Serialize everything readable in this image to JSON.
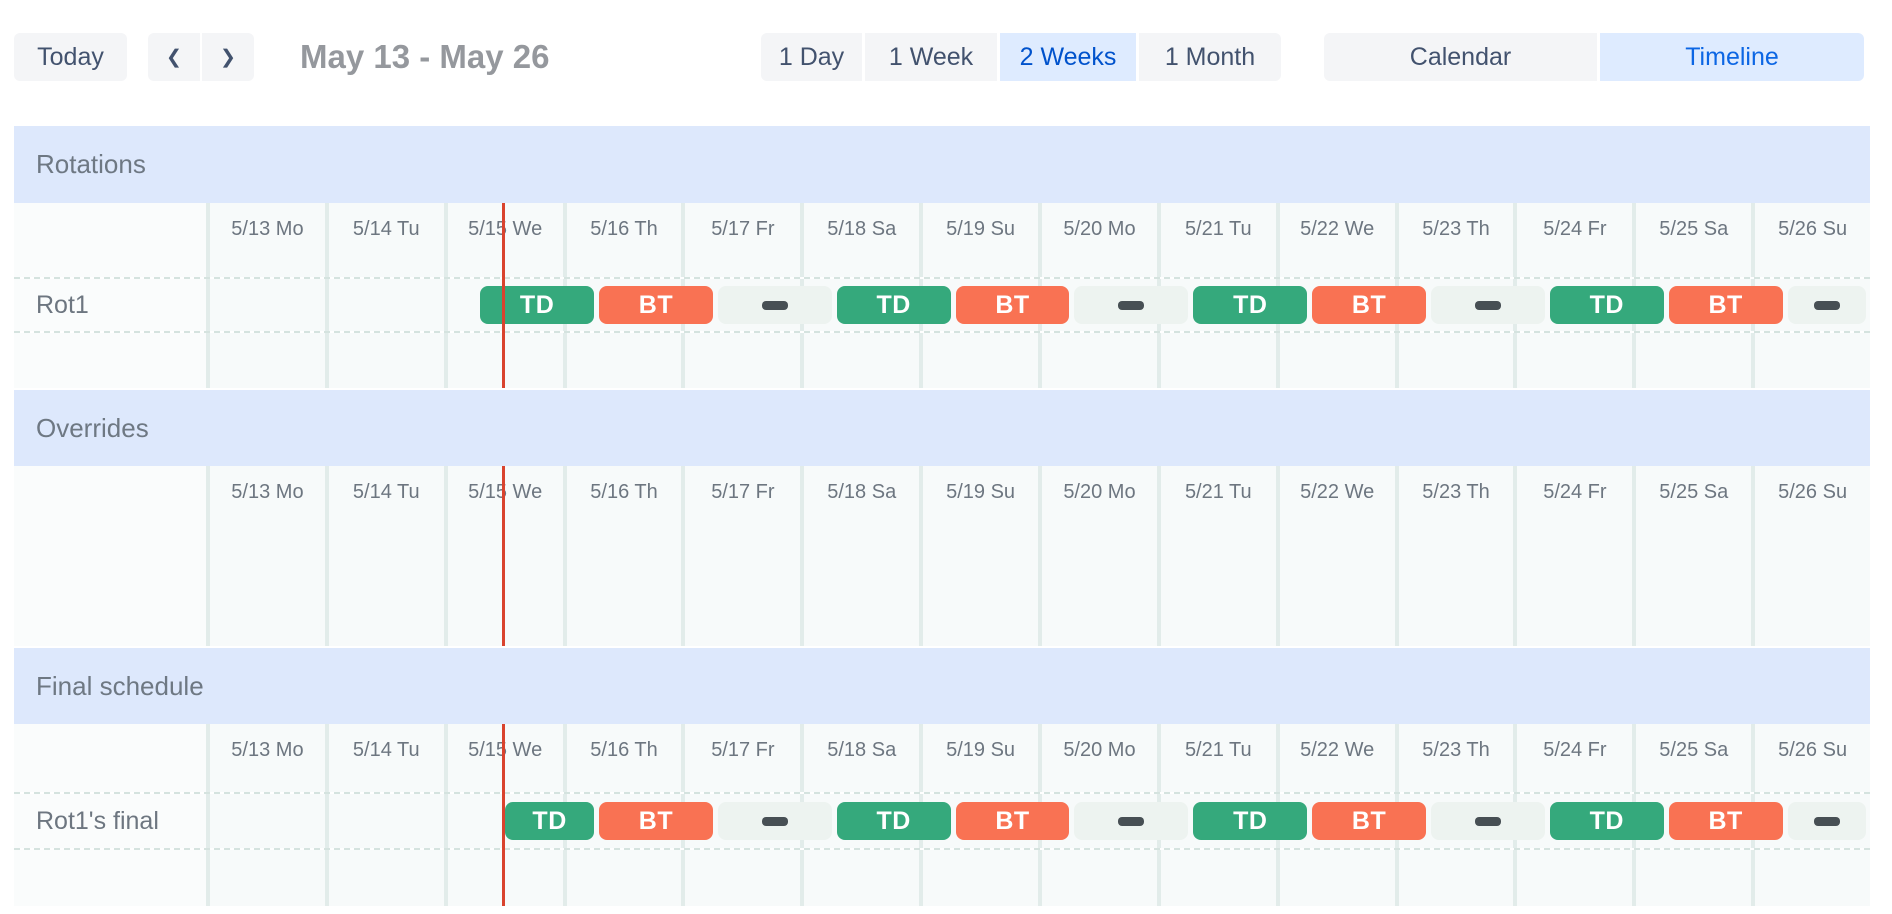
{
  "toolbar": {
    "today_label": "Today",
    "nav": {
      "prev_icon": "❮",
      "next_icon": "❯"
    },
    "range_label": "May 13 - May 26",
    "view_buttons": [
      {
        "label": "1 Day",
        "active": false
      },
      {
        "label": "1 Week",
        "active": false
      },
      {
        "label": "2 Weeks",
        "active": true
      },
      {
        "label": "1 Month",
        "active": false
      }
    ],
    "mode_buttons": [
      {
        "label": "Calendar",
        "active": false
      },
      {
        "label": "Timeline",
        "active": true
      }
    ]
  },
  "colors": {
    "accent_blue": "#0c66e4",
    "active_button_bg": "#deebff",
    "section_header_bg": "#dde8fc",
    "shift_green": "#35a97c",
    "shift_orange": "#f97253",
    "now_line_red": "#d9432e"
  },
  "timeline": {
    "days": [
      "5/13 Mo",
      "5/14 Tu",
      "5/15 We",
      "5/16 Th",
      "5/17 Fr",
      "5/18 Sa",
      "5/19 Su",
      "5/20 Mo",
      "5/21 Tu",
      "5/22 We",
      "5/23 Th",
      "5/24 Fr",
      "5/25 Sa",
      "5/26 Su"
    ],
    "now_day": 2.5,
    "sections": [
      {
        "title": "Rotations",
        "rows": [
          {
            "label": "Rot1",
            "blocks": [
              {
                "kind": "shift",
                "label": "TD",
                "start": 2.29,
                "end": 3.29
              },
              {
                "kind": "shift",
                "label": "BT",
                "start": 3.29,
                "end": 4.29
              },
              {
                "kind": "gap",
                "start": 4.29,
                "end": 5.29
              },
              {
                "kind": "shift",
                "label": "TD",
                "start": 5.29,
                "end": 6.29
              },
              {
                "kind": "shift",
                "label": "BT",
                "start": 6.29,
                "end": 7.29
              },
              {
                "kind": "gap",
                "start": 7.29,
                "end": 8.29
              },
              {
                "kind": "shift",
                "label": "TD",
                "start": 8.29,
                "end": 9.29
              },
              {
                "kind": "shift",
                "label": "BT",
                "start": 9.29,
                "end": 10.29
              },
              {
                "kind": "gap",
                "start": 10.29,
                "end": 11.29
              },
              {
                "kind": "shift",
                "label": "TD",
                "start": 11.29,
                "end": 12.29
              },
              {
                "kind": "shift",
                "label": "BT",
                "start": 12.29,
                "end": 13.29
              },
              {
                "kind": "gap",
                "start": 13.29,
                "end": 14,
                "clipped": true
              }
            ]
          }
        ]
      },
      {
        "title": "Overrides",
        "rows": []
      },
      {
        "title": "Final schedule",
        "rows": [
          {
            "label": "Rot1's final",
            "blocks": [
              {
                "kind": "shift",
                "label": "TD",
                "start": 2.5,
                "end": 3.29
              },
              {
                "kind": "shift",
                "label": "BT",
                "start": 3.29,
                "end": 4.29
              },
              {
                "kind": "gap",
                "start": 4.29,
                "end": 5.29
              },
              {
                "kind": "shift",
                "label": "TD",
                "start": 5.29,
                "end": 6.29
              },
              {
                "kind": "shift",
                "label": "BT",
                "start": 6.29,
                "end": 7.29
              },
              {
                "kind": "gap",
                "start": 7.29,
                "end": 8.29
              },
              {
                "kind": "shift",
                "label": "TD",
                "start": 8.29,
                "end": 9.29
              },
              {
                "kind": "shift",
                "label": "BT",
                "start": 9.29,
                "end": 10.29
              },
              {
                "kind": "gap",
                "start": 10.29,
                "end": 11.29
              },
              {
                "kind": "shift",
                "label": "TD",
                "start": 11.29,
                "end": 12.29
              },
              {
                "kind": "shift",
                "label": "BT",
                "start": 12.29,
                "end": 13.29
              },
              {
                "kind": "gap",
                "start": 13.29,
                "end": 14,
                "clipped": true
              }
            ]
          }
        ]
      }
    ]
  }
}
